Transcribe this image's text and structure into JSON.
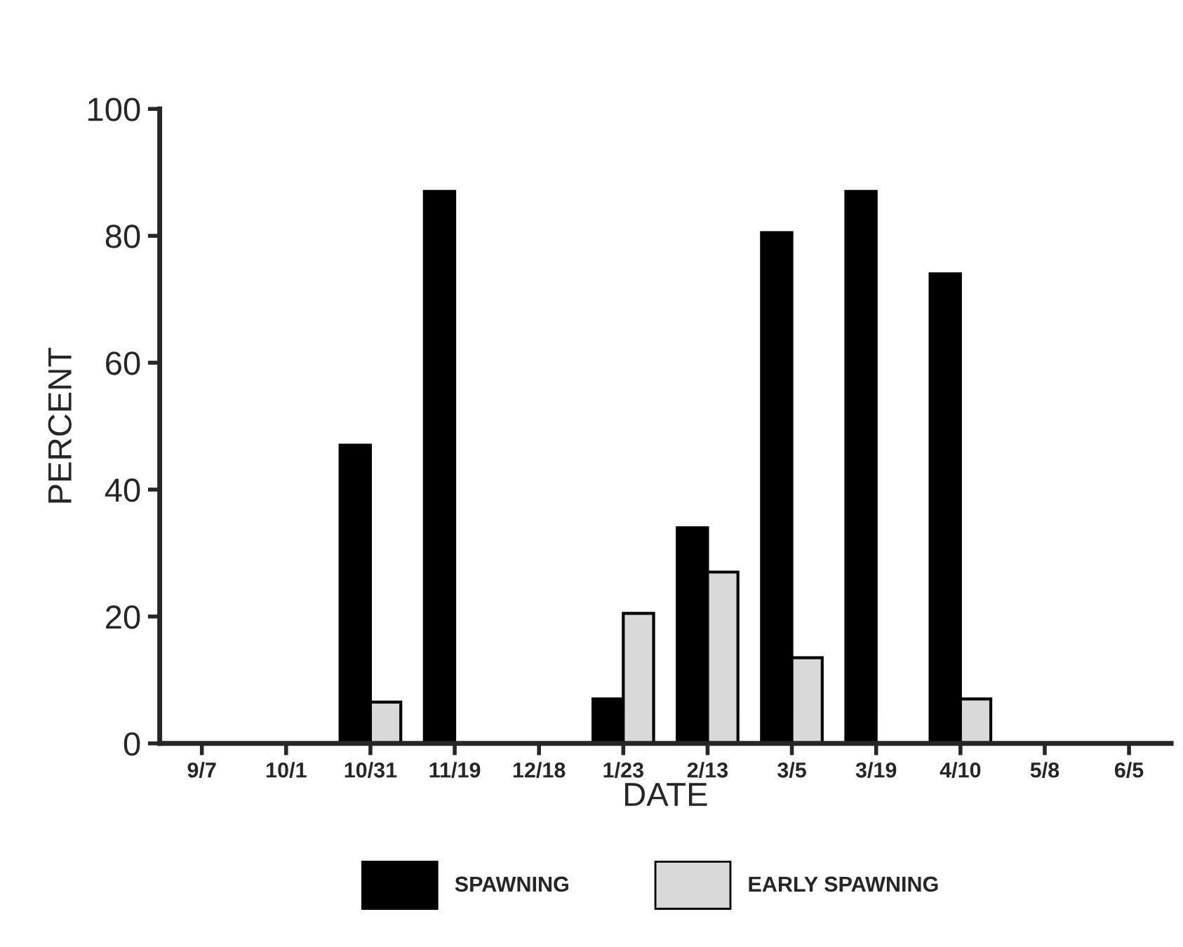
{
  "chart_data": {
    "type": "bar",
    "xlabel": "DATE",
    "ylabel": "PERCENT",
    "categories": [
      "9/7",
      "10/1",
      "10/31",
      "11/19",
      "12/18",
      "1/23",
      "2/13",
      "3/5",
      "3/19",
      "4/10",
      "5/8",
      "6/5"
    ],
    "series": [
      {
        "name": "SPAWNING",
        "color": "#000000",
        "values": [
          0,
          0,
          47,
          87,
          0,
          7,
          34,
          80.5,
          87,
          74,
          0,
          0
        ]
      },
      {
        "name": "EARLY SPAWNING",
        "color": "#d9d9d9",
        "values": [
          0,
          0,
          6.5,
          0,
          0,
          20.5,
          27,
          13.5,
          0,
          7,
          0,
          0
        ]
      }
    ],
    "ylim": [
      0,
      100
    ],
    "yticks": [
      0,
      20,
      40,
      60,
      80,
      100
    ],
    "grid": false,
    "legend": "bottom"
  }
}
